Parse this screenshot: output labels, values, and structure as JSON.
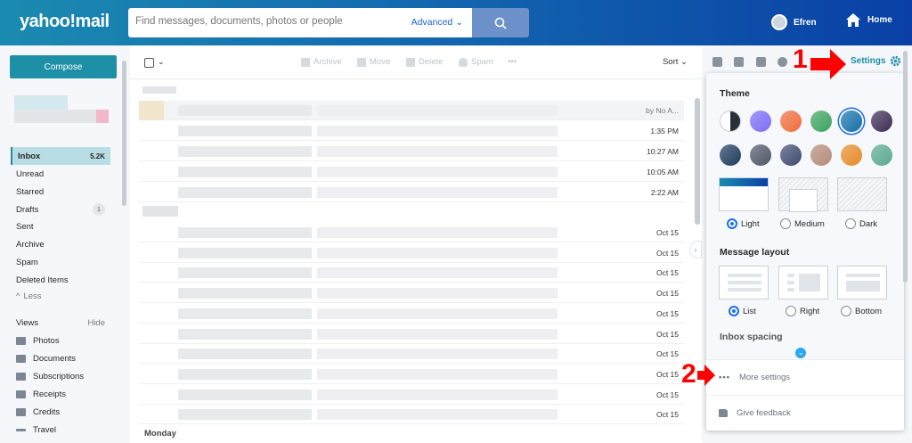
{
  "header": {
    "logo": "yahoo!mail",
    "search_placeholder": "Find messages, documents, photos or people",
    "advanced": "Advanced",
    "user_name": "Efren",
    "home": "Home"
  },
  "sidebar": {
    "compose": "Compose",
    "folders": [
      {
        "label": "Inbox",
        "count": "5.2K"
      },
      {
        "label": "Unread"
      },
      {
        "label": "Starred"
      },
      {
        "label": "Drafts",
        "count": "1"
      },
      {
        "label": "Sent"
      },
      {
        "label": "Archive"
      },
      {
        "label": "Spam"
      },
      {
        "label": "Deleted Items"
      }
    ],
    "less": "Less",
    "views_title": "Views",
    "views_hide": "Hide",
    "views": [
      {
        "label": "Photos",
        "icon": "photo-icon"
      },
      {
        "label": "Documents",
        "icon": "document-icon"
      },
      {
        "label": "Subscriptions",
        "icon": "subscriptions-icon"
      },
      {
        "label": "Receipts",
        "icon": "receipt-icon"
      },
      {
        "label": "Credits",
        "icon": "credit-card-icon"
      },
      {
        "label": "Travel",
        "icon": "plane-icon"
      }
    ]
  },
  "toolbar": {
    "archive": "Archive",
    "move": "Move",
    "delete": "Delete",
    "spam": "Spam",
    "more": "•••",
    "sort": "Sort"
  },
  "messages": {
    "first_snippet": "by No A...",
    "today": [
      "1:35 PM",
      "10:27 AM",
      "10:05 AM",
      "2:22 AM"
    ],
    "older": [
      "Oct 15",
      "Oct 15",
      "Oct 15",
      "Oct 15",
      "Oct 15",
      "Oct 15",
      "Oct 15",
      "Oct 15",
      "Oct 15",
      "Oct 15"
    ],
    "group_monday": "Monday"
  },
  "settings_panel": {
    "settings_link": "Settings",
    "theme_title": "Theme",
    "theme_colors": [
      "#2a3038",
      "#7b6cf6",
      "#ef6c3a",
      "#3aa35c",
      "#1470a8",
      "#3b2b52",
      "#1d3a5c",
      "#4f5566",
      "#3c4a6e",
      "#b58a78",
      "#e88a2a",
      "#5aa890"
    ],
    "selected_theme_index": 4,
    "modes": [
      "Light",
      "Medium",
      "Dark"
    ],
    "selected_mode": "Light",
    "layout_title": "Message layout",
    "layouts": [
      "List",
      "Right",
      "Bottom"
    ],
    "selected_layout": "List",
    "spacing_title": "Inbox spacing",
    "more_settings": "More settings",
    "feedback": "Give feedback"
  },
  "annotations": {
    "one": "1",
    "two": "2"
  }
}
